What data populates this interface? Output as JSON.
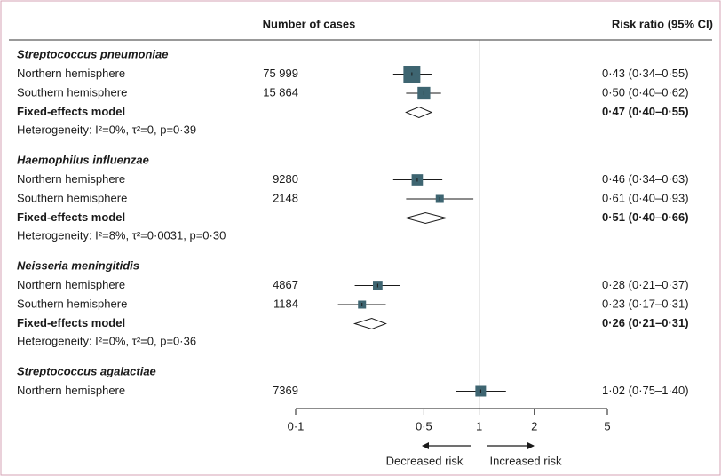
{
  "chart_data": {
    "type": "forest",
    "columns": [
      "Number of cases",
      "Risk ratio (95% CI)"
    ],
    "xscale": "log",
    "xlim": [
      0.1,
      5
    ],
    "xticks": [
      {
        "value": 0.1,
        "label": "0·1"
      },
      {
        "value": 0.5,
        "label": "0·5"
      },
      1,
      2,
      5
    ],
    "reference_line": 1,
    "axis_annotations": [
      "Decreased risk",
      "Increased risk"
    ],
    "color": "#3e6571",
    "groups": [
      {
        "name": "Streptococcus pneumoniae",
        "studies": [
          {
            "name": "Northern hemisphere",
            "cases": 75999,
            "cases_label": "75 999",
            "rr": 0.43,
            "ci": [
              0.34,
              0.55
            ],
            "rr_label": "0·43 (0·34–0·55)"
          },
          {
            "name": "Southern hemisphere",
            "cases": 15864,
            "cases_label": "15 864",
            "rr": 0.5,
            "ci": [
              0.4,
              0.62
            ],
            "rr_label": "0·50 (0·40–0·62)"
          }
        ],
        "pooled": {
          "name": "Fixed-effects model",
          "rr": 0.47,
          "ci": [
            0.4,
            0.55
          ],
          "rr_label": "0·47 (0·40–0·55)"
        },
        "heterogeneity": "Heterogeneity: I²=0%, τ²=0, p=0·39"
      },
      {
        "name": "Haemophilus influenzae",
        "studies": [
          {
            "name": "Northern hemisphere",
            "cases": 9280,
            "rr": 0.46,
            "ci": [
              0.34,
              0.63
            ],
            "rr_label": "0·46 (0·34–0·63)"
          },
          {
            "name": "Southern hemisphere",
            "cases": 2148,
            "rr": 0.61,
            "ci": [
              0.4,
              0.93
            ],
            "rr_label": "0·61 (0·40–0·93)"
          }
        ],
        "pooled": {
          "name": "Fixed-effects model",
          "rr": 0.51,
          "ci": [
            0.4,
            0.66
          ],
          "rr_label": "0·51 (0·40–0·66)"
        },
        "heterogeneity": "Heterogeneity: I²=8%, τ²=0·0031, p=0·30"
      },
      {
        "name": "Neisseria meningitidis",
        "studies": [
          {
            "name": "Northern hemisphere",
            "cases": 4867,
            "rr": 0.28,
            "ci": [
              0.21,
              0.37
            ],
            "rr_label": "0·28 (0·21–0·37)"
          },
          {
            "name": "Southern hemisphere",
            "cases": 1184,
            "rr": 0.23,
            "ci": [
              0.17,
              0.31
            ],
            "rr_label": "0·23 (0·17–0·31)"
          }
        ],
        "pooled": {
          "name": "Fixed-effects model",
          "rr": 0.26,
          "ci": [
            0.21,
            0.31
          ],
          "rr_label": "0·26 (0·21–0·31)"
        },
        "heterogeneity": "Heterogeneity: I²=0%, τ²=0, p=0·36"
      },
      {
        "name": "Streptococcus agalactiae",
        "studies": [
          {
            "name": "Northern hemisphere",
            "cases": 7369,
            "rr": 1.02,
            "ci": [
              0.75,
              1.4
            ],
            "rr_label": "1·02 (0·75–1·40)"
          }
        ]
      }
    ]
  }
}
